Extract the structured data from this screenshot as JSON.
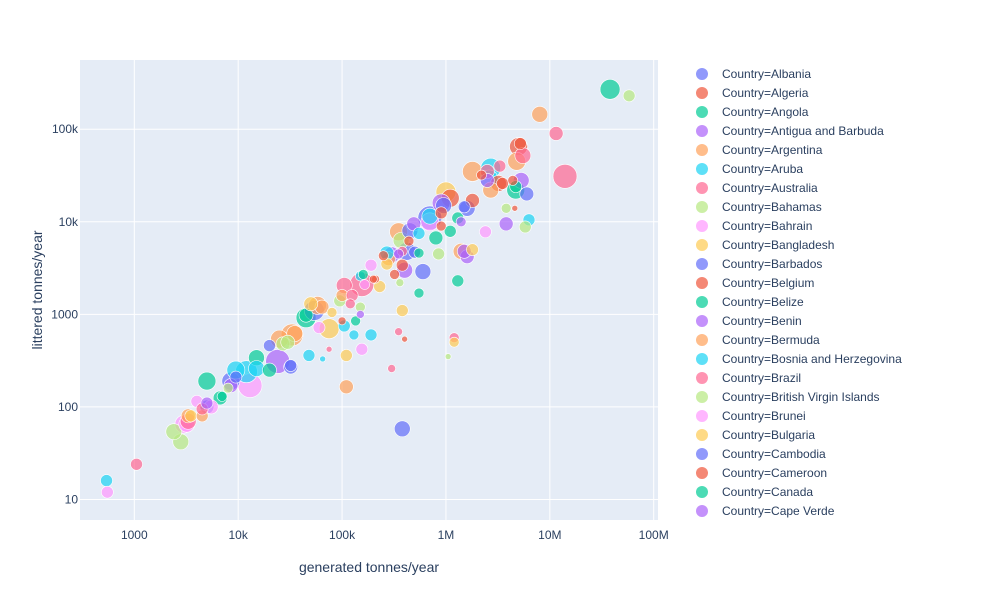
{
  "chart_data": {
    "type": "scatter",
    "xlabel": "generated tonnes/year",
    "ylabel": "littered tonnes/year",
    "x_scale": "log",
    "y_scale": "log",
    "xlim": [
      300,
      110000000
    ],
    "ylim": [
      6,
      560000
    ],
    "x_ticks": [
      {
        "value": 1000,
        "label": "1000"
      },
      {
        "value": 10000,
        "label": "10k"
      },
      {
        "value": 100000,
        "label": "100k"
      },
      {
        "value": 1000000,
        "label": "1M"
      },
      {
        "value": 10000000,
        "label": "10M"
      },
      {
        "value": 100000000,
        "label": "100M"
      }
    ],
    "y_ticks": [
      {
        "value": 10,
        "label": "10"
      },
      {
        "value": 100,
        "label": "100"
      },
      {
        "value": 1000,
        "label": "1000"
      },
      {
        "value": 10000,
        "label": "10k"
      },
      {
        "value": 100000,
        "label": "100k"
      }
    ],
    "grid": true,
    "plot_background": "#e5ecf6",
    "legend_position": "right",
    "marker_opacity": 0.7,
    "series": [
      {
        "name": "Country=Albania",
        "color": "#636efa",
        "points": [
          {
            "x": 380000,
            "y": 58,
            "s": 8
          },
          {
            "x": 1600000,
            "y": 14000,
            "s": 8
          },
          {
            "x": 6000000,
            "y": 20000,
            "s": 7
          },
          {
            "x": 8500,
            "y": 190,
            "s": 9
          },
          {
            "x": 32000,
            "y": 270,
            "s": 7
          },
          {
            "x": 600000,
            "y": 2900,
            "s": 8
          },
          {
            "x": 20000,
            "y": 460,
            "s": 6
          },
          {
            "x": 420000,
            "y": 4800,
            "s": 9
          }
        ]
      },
      {
        "name": "Country=Algeria",
        "color": "#EF553B",
        "points": [
          {
            "x": 5000000,
            "y": 65000,
            "s": 9
          },
          {
            "x": 3200000,
            "y": 26000,
            "s": 8
          },
          {
            "x": 1100000,
            "y": 18000,
            "s": 9
          },
          {
            "x": 320000,
            "y": 2700,
            "s": 5
          },
          {
            "x": 210000,
            "y": 2400,
            "s": 4
          },
          {
            "x": 400000,
            "y": 540,
            "s": 3
          },
          {
            "x": 900000,
            "y": 9000,
            "s": 5
          },
          {
            "x": 1800000,
            "y": 17000,
            "s": 7
          }
        ]
      },
      {
        "name": "Country=Angola",
        "color": "#00cc96",
        "points": [
          {
            "x": 38000000,
            "y": 270000,
            "s": 10
          },
          {
            "x": 4700000,
            "y": 22000,
            "s": 9
          },
          {
            "x": 45000,
            "y": 920,
            "s": 10
          },
          {
            "x": 5000,
            "y": 190,
            "s": 9
          },
          {
            "x": 15000,
            "y": 340,
            "s": 8
          },
          {
            "x": 1300000,
            "y": 2300,
            "s": 6
          },
          {
            "x": 800000,
            "y": 6700,
            "s": 7
          },
          {
            "x": 550000,
            "y": 1700,
            "s": 5
          },
          {
            "x": 1100000,
            "y": 7900,
            "s": 6
          },
          {
            "x": 20000,
            "y": 250,
            "s": 7
          }
        ]
      },
      {
        "name": "Country=Antigua and Barbuda",
        "color": "#ab63fa",
        "points": [
          {
            "x": 5300000,
            "y": 28000,
            "s": 8
          },
          {
            "x": 3800000,
            "y": 9500,
            "s": 7
          },
          {
            "x": 24000,
            "y": 310,
            "s": 12
          },
          {
            "x": 400000,
            "y": 3000,
            "s": 8
          },
          {
            "x": 900000,
            "y": 16000,
            "s": 9
          },
          {
            "x": 1600000,
            "y": 4200,
            "s": 7
          }
        ]
      },
      {
        "name": "Country=Argentina",
        "color": "#FFA15A",
        "points": [
          {
            "x": 8000000,
            "y": 145000,
            "s": 8
          },
          {
            "x": 4800000,
            "y": 45000,
            "s": 9
          },
          {
            "x": 1800000,
            "y": 35000,
            "s": 10
          },
          {
            "x": 350000,
            "y": 7800,
            "s": 9
          },
          {
            "x": 25000,
            "y": 540,
            "s": 9
          },
          {
            "x": 3300,
            "y": 80,
            "s": 7
          },
          {
            "x": 110000,
            "y": 165,
            "s": 7
          },
          {
            "x": 58000,
            "y": 1250,
            "s": 9
          },
          {
            "x": 33000,
            "y": 600,
            "s": 11
          },
          {
            "x": 2700000,
            "y": 22000,
            "s": 8
          },
          {
            "x": 1400000,
            "y": 4800,
            "s": 8
          }
        ]
      },
      {
        "name": "Country=Aruba",
        "color": "#19d3f3",
        "points": [
          {
            "x": 540,
            "y": 16,
            "s": 6
          },
          {
            "x": 12000,
            "y": 240,
            "s": 11
          },
          {
            "x": 9500,
            "y": 250,
            "s": 9
          },
          {
            "x": 2700000,
            "y": 38000,
            "s": 10
          },
          {
            "x": 2600000,
            "y": 29000,
            "s": 9
          },
          {
            "x": 6300000,
            "y": 10500,
            "s": 6
          },
          {
            "x": 130000,
            "y": 600,
            "s": 5
          },
          {
            "x": 48000,
            "y": 360,
            "s": 6
          },
          {
            "x": 105000,
            "y": 750,
            "s": 6
          },
          {
            "x": 150000,
            "y": 2600,
            "s": 5
          },
          {
            "x": 550000,
            "y": 7500,
            "s": 6
          }
        ]
      },
      {
        "name": "Country=Australia",
        "color": "#FF6692",
        "points": [
          {
            "x": 14000000,
            "y": 31000,
            "s": 12
          },
          {
            "x": 11500000,
            "y": 90000,
            "s": 7
          },
          {
            "x": 5500000,
            "y": 52000,
            "s": 8
          },
          {
            "x": 1050,
            "y": 24,
            "s": 6
          },
          {
            "x": 155000,
            "y": 2100,
            "s": 12
          },
          {
            "x": 105000,
            "y": 2050,
            "s": 8
          },
          {
            "x": 1200000,
            "y": 560,
            "s": 5
          },
          {
            "x": 350000,
            "y": 650,
            "s": 4
          },
          {
            "x": 300000,
            "y": 260,
            "s": 4
          },
          {
            "x": 3300000,
            "y": 40000,
            "s": 6
          },
          {
            "x": 2500000,
            "y": 35000,
            "s": 7
          },
          {
            "x": 120000,
            "y": 1300,
            "s": 5
          }
        ]
      },
      {
        "name": "Country=Bahamas",
        "color": "#B6E880",
        "points": [
          {
            "x": 58000000,
            "y": 230000,
            "s": 6
          },
          {
            "x": 2800,
            "y": 42,
            "s": 8
          },
          {
            "x": 2400,
            "y": 54,
            "s": 8
          },
          {
            "x": 5800000,
            "y": 8800,
            "s": 6
          },
          {
            "x": 370000,
            "y": 6300,
            "s": 8
          },
          {
            "x": 1050000,
            "y": 350,
            "s": 3
          },
          {
            "x": 850000,
            "y": 4500,
            "s": 6
          },
          {
            "x": 3800000,
            "y": 14000,
            "s": 5
          },
          {
            "x": 95000,
            "y": 1400,
            "s": 6
          },
          {
            "x": 27000,
            "y": 480,
            "s": 7
          }
        ]
      },
      {
        "name": "Country=Bahrain",
        "color": "#FF97FF",
        "points": [
          {
            "x": 550,
            "y": 12,
            "s": 6
          },
          {
            "x": 13000,
            "y": 170,
            "s": 12
          },
          {
            "x": 3200,
            "y": 65,
            "s": 8
          },
          {
            "x": 4000,
            "y": 115,
            "s": 6
          },
          {
            "x": 155000,
            "y": 420,
            "s": 6
          },
          {
            "x": 190000,
            "y": 3400,
            "s": 6
          },
          {
            "x": 2400000,
            "y": 7800,
            "s": 6
          },
          {
            "x": 700000,
            "y": 10000,
            "s": 9
          }
        ]
      },
      {
        "name": "Country=Bangladesh",
        "color": "#FECB52",
        "points": [
          {
            "x": 1000000,
            "y": 21000,
            "s": 10
          },
          {
            "x": 75000,
            "y": 700,
            "s": 10
          },
          {
            "x": 230000,
            "y": 2000,
            "s": 6
          },
          {
            "x": 1800000,
            "y": 5000,
            "s": 6
          },
          {
            "x": 110000,
            "y": 360,
            "s": 6
          },
          {
            "x": 1200000,
            "y": 500,
            "s": 5
          },
          {
            "x": 380000,
            "y": 1100,
            "s": 6
          },
          {
            "x": 3500,
            "y": 80,
            "s": 6
          }
        ]
      },
      {
        "name": "Country=Barbados",
        "color": "#636efa",
        "points": [
          {
            "x": 700000,
            "y": 11000,
            "s": 12
          },
          {
            "x": 950000,
            "y": 15000,
            "s": 8
          },
          {
            "x": 32000,
            "y": 280,
            "s": 6
          },
          {
            "x": 5000,
            "y": 100,
            "s": 7
          },
          {
            "x": 450000,
            "y": 8000,
            "s": 8
          },
          {
            "x": 54000,
            "y": 1100,
            "s": 10
          }
        ]
      },
      {
        "name": "Country=Belgium",
        "color": "#EF553B",
        "points": [
          {
            "x": 5200000,
            "y": 70000,
            "s": 6
          },
          {
            "x": 3500000,
            "y": 26000,
            "s": 6
          },
          {
            "x": 380000,
            "y": 3400,
            "s": 6
          },
          {
            "x": 440000,
            "y": 6200,
            "s": 5
          },
          {
            "x": 250000,
            "y": 4300,
            "s": 5
          },
          {
            "x": 2200000,
            "y": 32000,
            "s": 5
          },
          {
            "x": 100000,
            "y": 850,
            "s": 4
          },
          {
            "x": 4600000,
            "y": 14000,
            "s": 3
          }
        ]
      },
      {
        "name": "Country=Belize",
        "color": "#00cc96",
        "points": [
          {
            "x": 4700000,
            "y": 24000,
            "s": 6
          },
          {
            "x": 6700,
            "y": 125,
            "s": 7
          },
          {
            "x": 550000,
            "y": 4600,
            "s": 5
          },
          {
            "x": 1300000,
            "y": 11000,
            "s": 6
          },
          {
            "x": 45000,
            "y": 980,
            "s": 7
          },
          {
            "x": 135000,
            "y": 850,
            "s": 5
          }
        ]
      },
      {
        "name": "Country=Benin",
        "color": "#ab63fa",
        "points": [
          {
            "x": 2500000,
            "y": 28000,
            "s": 7
          },
          {
            "x": 8500,
            "y": 170,
            "s": 7
          },
          {
            "x": 300000,
            "y": 4400,
            "s": 8
          },
          {
            "x": 1400000,
            "y": 10000,
            "s": 5
          },
          {
            "x": 1500000,
            "y": 4800,
            "s": 7
          },
          {
            "x": 490000,
            "y": 9500,
            "s": 7
          },
          {
            "x": 150000,
            "y": 1000,
            "s": 4
          }
        ]
      },
      {
        "name": "Country=Bermuda",
        "color": "#FFA15A",
        "points": [
          {
            "x": 35000,
            "y": 620,
            "s": 8
          },
          {
            "x": 64000,
            "y": 1200,
            "s": 7
          },
          {
            "x": 100000,
            "y": 1600,
            "s": 6
          },
          {
            "x": 280000,
            "y": 4000,
            "s": 7
          },
          {
            "x": 4500,
            "y": 80,
            "s": 6
          }
        ]
      },
      {
        "name": "Country=Bosnia and Herzegovina",
        "color": "#19d3f3",
        "points": [
          {
            "x": 15000,
            "y": 260,
            "s": 8
          },
          {
            "x": 270000,
            "y": 4600,
            "s": 7
          },
          {
            "x": 190000,
            "y": 600,
            "s": 6
          },
          {
            "x": 700000,
            "y": 11500,
            "s": 8
          },
          {
            "x": 65000,
            "y": 330,
            "s": 3
          }
        ]
      },
      {
        "name": "Country=Brazil",
        "color": "#FF6692",
        "points": [
          {
            "x": 3300,
            "y": 70,
            "s": 8
          },
          {
            "x": 125000,
            "y": 1600,
            "s": 6
          },
          {
            "x": 4500,
            "y": 95,
            "s": 6
          },
          {
            "x": 75000,
            "y": 420,
            "s": 3
          },
          {
            "x": 380000,
            "y": 4800,
            "s": 5
          }
        ]
      },
      {
        "name": "Country=British Virgin Islands",
        "color": "#B6E880",
        "points": [
          {
            "x": 30000,
            "y": 500,
            "s": 7
          },
          {
            "x": 150000,
            "y": 1200,
            "s": 5
          },
          {
            "x": 360000,
            "y": 2200,
            "s": 4
          },
          {
            "x": 8000,
            "y": 160,
            "s": 5
          }
        ]
      },
      {
        "name": "Country=Brunei",
        "color": "#FF97FF",
        "points": [
          {
            "x": 3000,
            "y": 65,
            "s": 9
          },
          {
            "x": 60000,
            "y": 720,
            "s": 6
          },
          {
            "x": 165000,
            "y": 2100,
            "s": 5
          },
          {
            "x": 5500,
            "y": 100,
            "s": 7
          }
        ]
      },
      {
        "name": "Country=Bulgaria",
        "color": "#FECB52",
        "points": [
          {
            "x": 50000,
            "y": 1300,
            "s": 7
          },
          {
            "x": 270000,
            "y": 3500,
            "s": 6
          },
          {
            "x": 80000,
            "y": 1050,
            "s": 5
          }
        ]
      },
      {
        "name": "Country=Cambodia",
        "color": "#636efa",
        "points": [
          {
            "x": 500000,
            "y": 4700,
            "s": 6
          },
          {
            "x": 9500,
            "y": 210,
            "s": 6
          },
          {
            "x": 1500000,
            "y": 14500,
            "s": 6
          }
        ]
      },
      {
        "name": "Country=Cameroon",
        "color": "#EF553B",
        "points": [
          {
            "x": 4400000,
            "y": 28000,
            "s": 5
          },
          {
            "x": 900000,
            "y": 12500,
            "s": 6
          },
          {
            "x": 200000,
            "y": 2400,
            "s": 4
          }
        ]
      },
      {
        "name": "Country=Canada",
        "color": "#00cc96",
        "points": [
          {
            "x": 160000,
            "y": 2700,
            "s": 5
          },
          {
            "x": 7000,
            "y": 130,
            "s": 5
          }
        ]
      },
      {
        "name": "Country=Cape Verde",
        "color": "#ab63fa",
        "points": [
          {
            "x": 5000,
            "y": 110,
            "s": 6
          },
          {
            "x": 350000,
            "y": 4500,
            "s": 5
          }
        ]
      }
    ]
  }
}
